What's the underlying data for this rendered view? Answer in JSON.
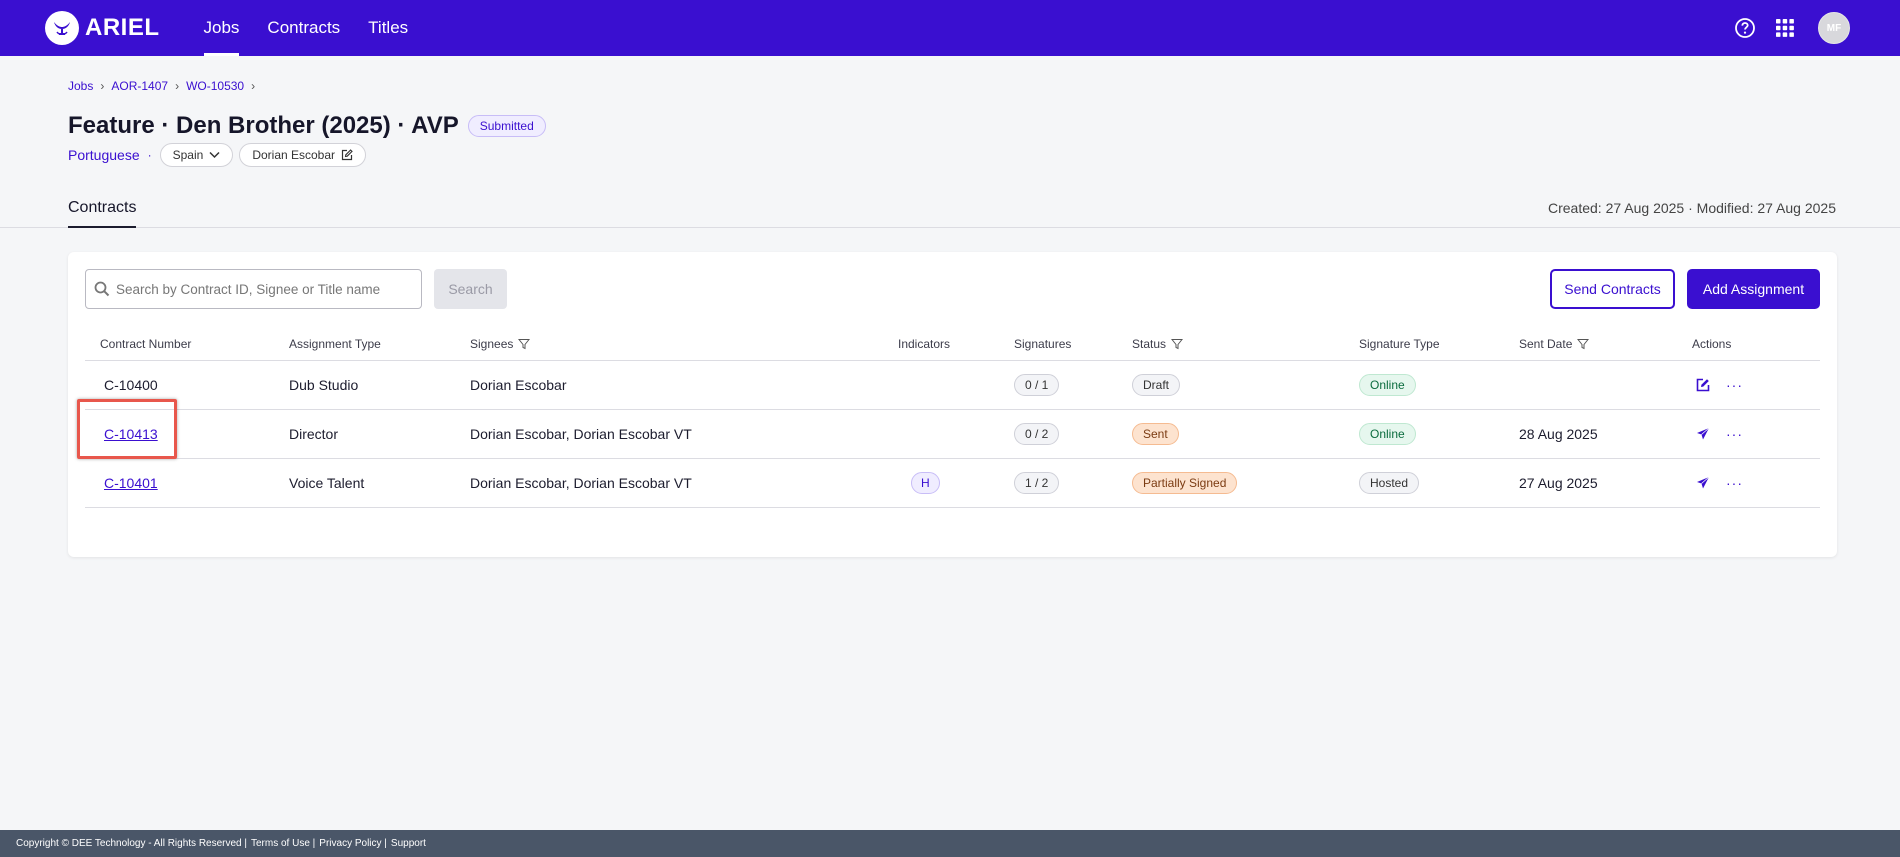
{
  "nav": {
    "logo_text": "ARIEL",
    "links": [
      {
        "label": "Jobs",
        "active": true
      },
      {
        "label": "Contracts",
        "active": false
      },
      {
        "label": "Titles",
        "active": false
      }
    ],
    "avatar_initials": "MF",
    "accent": "#3a0fd0"
  },
  "breadcrumb": [
    "Jobs",
    "AOR-1407",
    "WO-10530"
  ],
  "header": {
    "title": "Feature · Den Brother (2025) · AVP",
    "status": "Submitted",
    "language": "Portuguese",
    "country": "Spain",
    "assignee": "Dorian Escobar"
  },
  "tabs": {
    "active": "Contracts",
    "dates": "Created: 27 Aug 2025 · Modified: 27 Aug 2025"
  },
  "toolbar": {
    "search_placeholder": "Search by Contract ID, Signee or Title name",
    "search_label": "Search",
    "send_label": "Send Contracts",
    "add_label": "Add Assignment"
  },
  "table": {
    "headers": {
      "contract_number": "Contract Number",
      "assignment_type": "Assignment Type",
      "signees": "Signees",
      "indicators": "Indicators",
      "signatures": "Signatures",
      "status": "Status",
      "signature_type": "Signature Type",
      "sent_date": "Sent Date",
      "actions": "Actions"
    },
    "rows": [
      {
        "contract": "C-10400",
        "type": "Dub Studio",
        "signees": "Dorian Escobar",
        "indicator": "",
        "signatures": "0 / 1",
        "status": "Draft",
        "sig_type": "Online",
        "sent": "",
        "action_icon": "edit-icon"
      },
      {
        "contract": "C-10413",
        "type": "Director",
        "signees": "Dorian Escobar, Dorian Escobar VT",
        "indicator": "",
        "signatures": "0 / 2",
        "status": "Sent",
        "sig_type": "Online",
        "sent": "28 Aug 2025",
        "action_icon": "send-icon"
      },
      {
        "contract": "C-10401",
        "type": "Voice Talent",
        "signees": "Dorian Escobar, Dorian Escobar VT",
        "indicator": "H",
        "signatures": "1 / 2",
        "status": "Partially Signed",
        "sig_type": "Hosted",
        "sent": "27 Aug 2025",
        "action_icon": "send-icon"
      }
    ],
    "more_label": "···"
  },
  "footer": {
    "copyright": "Copyright © DEE Technology - All Rights Reserved |",
    "terms": "Terms of Use |",
    "privacy": "Privacy Policy |",
    "support": "Support"
  }
}
